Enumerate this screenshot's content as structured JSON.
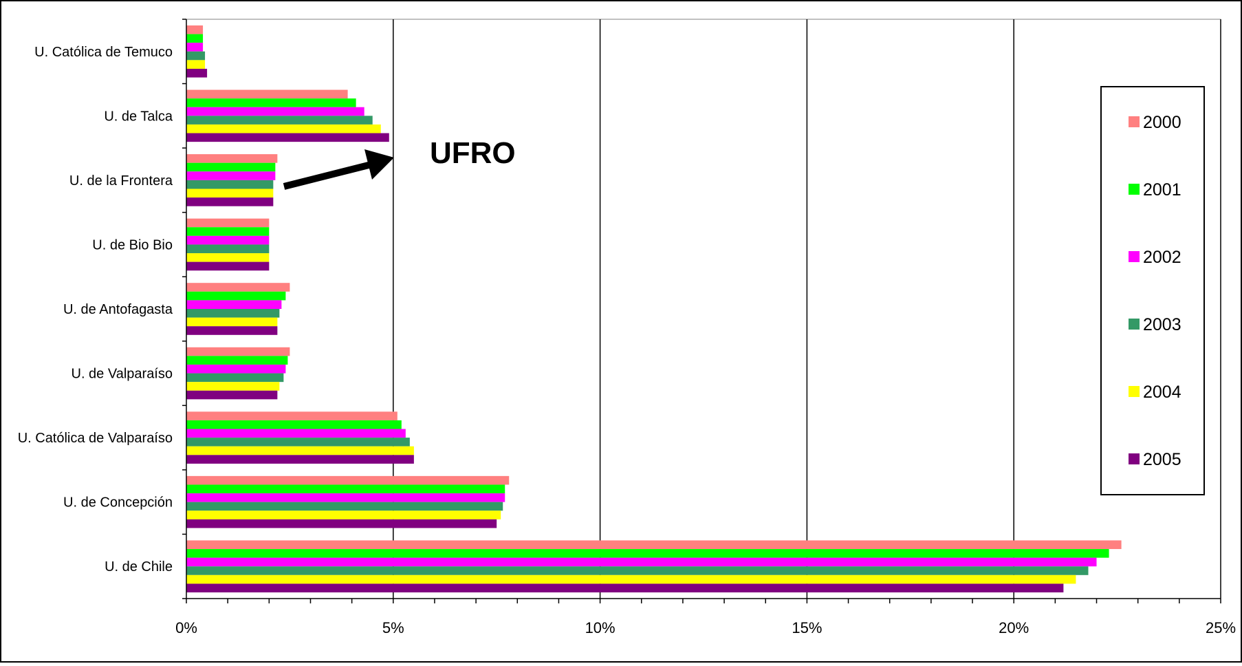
{
  "chart_data": {
    "type": "bar",
    "orientation": "horizontal",
    "categories": [
      "U. Católica de Temuco",
      "U. de Talca",
      "U. de la Frontera",
      "U. de Bio Bio",
      "U. de Antofagasta",
      "U. de Valparaíso",
      "U. Católica de Valparaíso",
      "U. de Concepción",
      "U. de Chile"
    ],
    "series": [
      {
        "name": "2000",
        "color": "#ff8080",
        "values": [
          0.4,
          3.9,
          2.2,
          2.0,
          2.5,
          2.5,
          5.1,
          7.8,
          22.6
        ]
      },
      {
        "name": "2001",
        "color": "#00ff00",
        "values": [
          0.4,
          4.1,
          2.15,
          2.0,
          2.4,
          2.45,
          5.2,
          7.7,
          22.3
        ]
      },
      {
        "name": "2002",
        "color": "#ff00ff",
        "values": [
          0.4,
          4.3,
          2.15,
          2.0,
          2.3,
          2.4,
          5.3,
          7.7,
          22.0
        ]
      },
      {
        "name": "2003",
        "color": "#339966",
        "values": [
          0.45,
          4.5,
          2.1,
          2.0,
          2.25,
          2.35,
          5.4,
          7.65,
          21.8
        ]
      },
      {
        "name": "2004",
        "color": "#ffff00",
        "values": [
          0.45,
          4.7,
          2.1,
          2.0,
          2.2,
          2.25,
          5.5,
          7.6,
          21.5
        ]
      },
      {
        "name": "2005",
        "color": "#800080",
        "values": [
          0.5,
          4.9,
          2.1,
          2.0,
          2.2,
          2.2,
          5.5,
          7.5,
          21.2
        ]
      }
    ],
    "xlim": [
      0,
      25
    ],
    "x_ticks": [
      "0%",
      "5%",
      "10%",
      "15%",
      "20%",
      "25%"
    ],
    "gridlines": "vertical-major",
    "legend_placement": "right",
    "title": "",
    "xlabel": "",
    "ylabel": ""
  },
  "annotation": {
    "text": "UFRO",
    "points_to": "U. de la Frontera"
  }
}
